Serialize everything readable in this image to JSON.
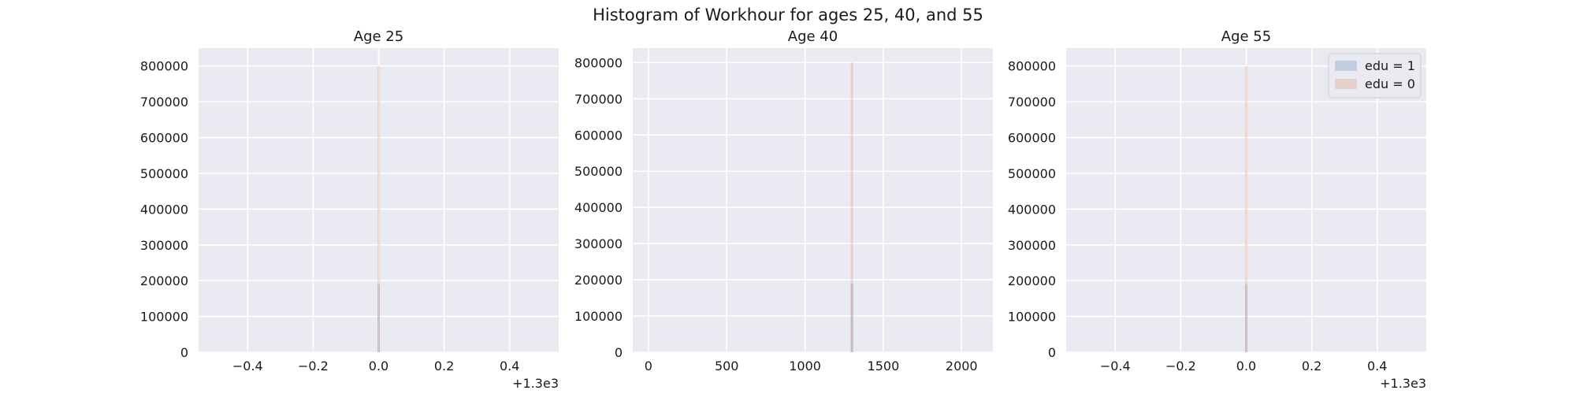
{
  "figure": {
    "suptitle": "Histogram of Workhour for ages 25, 40, and 55",
    "background": "#ffffff",
    "axes_facecolor": "#eaeaf2",
    "grid_color": "#ffffff"
  },
  "chart_data": [
    {
      "type": "bar",
      "title": "Age 25",
      "xlabel": "",
      "ylabel": "",
      "xlim": [
        -0.55,
        0.55
      ],
      "ylim": [
        0,
        850000
      ],
      "xticks": [
        -0.4,
        -0.2,
        0.0,
        0.2,
        0.4
      ],
      "xtick_labels": [
        "−0.4",
        "−0.2",
        "0.0",
        "0.2",
        "0.4"
      ],
      "yticks": [
        0,
        100000,
        200000,
        300000,
        400000,
        500000,
        600000,
        700000,
        800000
      ],
      "ytick_labels": [
        "0",
        "100000",
        "200000",
        "300000",
        "400000",
        "500000",
        "600000",
        "700000",
        "800000"
      ],
      "offset_label": "+1.3e3",
      "grid": true,
      "legend": null,
      "series": [
        {
          "name": "edu = 1",
          "color": "#4c72b0",
          "alpha": 0.25,
          "bars": [
            {
              "x": 0.0,
              "height": 190000
            }
          ]
        },
        {
          "name": "edu = 0",
          "color": "#dd8452",
          "alpha": 0.25,
          "bars": [
            {
              "x": 0.0,
              "height": 800000
            }
          ]
        }
      ]
    },
    {
      "type": "bar",
      "title": "Age 40",
      "xlabel": "",
      "ylabel": "",
      "xlim": [
        -100,
        2200
      ],
      "ylim": [
        0,
        840000
      ],
      "xticks": [
        0,
        500,
        1000,
        1500,
        2000
      ],
      "xtick_labels": [
        "0",
        "500",
        "1000",
        "1500",
        "2000"
      ],
      "yticks": [
        0,
        100000,
        200000,
        300000,
        400000,
        500000,
        600000,
        700000,
        800000
      ],
      "ytick_labels": [
        "0",
        "100000",
        "200000",
        "300000",
        "400000",
        "500000",
        "600000",
        "700000",
        "800000"
      ],
      "offset_label": "",
      "grid": true,
      "legend": null,
      "series": [
        {
          "name": "edu = 1",
          "color": "#4c72b0",
          "alpha": 0.25,
          "bars": [
            {
              "x": 1300,
              "height": 190000
            }
          ]
        },
        {
          "name": "edu = 0",
          "color": "#dd8452",
          "alpha": 0.25,
          "bars": [
            {
              "x": 1300,
              "height": 800000
            }
          ]
        }
      ]
    },
    {
      "type": "bar",
      "title": "Age 55",
      "xlabel": "",
      "ylabel": "",
      "xlim": [
        -0.55,
        0.55
      ],
      "ylim": [
        0,
        850000
      ],
      "xticks": [
        -0.4,
        -0.2,
        0.0,
        0.2,
        0.4
      ],
      "xtick_labels": [
        "−0.4",
        "−0.2",
        "0.0",
        "0.2",
        "0.4"
      ],
      "yticks": [
        0,
        100000,
        200000,
        300000,
        400000,
        500000,
        600000,
        700000,
        800000
      ],
      "ytick_labels": [
        "0",
        "100000",
        "200000",
        "300000",
        "400000",
        "500000",
        "600000",
        "700000",
        "800000"
      ],
      "offset_label": "+1.3e3",
      "grid": true,
      "legend": {
        "placement": "top-right",
        "entries": [
          {
            "label": "edu = 1",
            "color": "#4c72b0",
            "alpha": 0.25
          },
          {
            "label": "edu = 0",
            "color": "#dd8452",
            "alpha": 0.25
          }
        ]
      },
      "series": [
        {
          "name": "edu = 1",
          "color": "#4c72b0",
          "alpha": 0.25,
          "bars": [
            {
              "x": 0.0,
              "height": 190000
            }
          ]
        },
        {
          "name": "edu = 0",
          "color": "#dd8452",
          "alpha": 0.25,
          "bars": [
            {
              "x": 0.0,
              "height": 800000
            }
          ]
        }
      ]
    }
  ]
}
